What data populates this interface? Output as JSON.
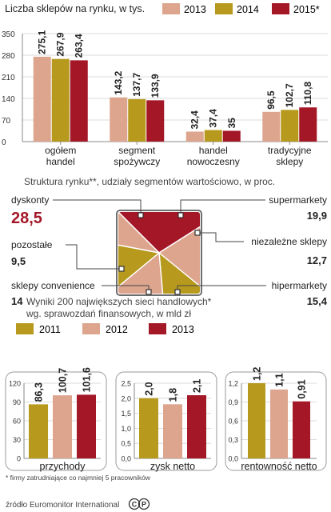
{
  "colors": {
    "c_pink": "#dda58e",
    "c_gold": "#b79a1d",
    "c_red": "#a31727",
    "frame": "#6f6f6f",
    "grid": "#cfcfcf",
    "text": "#222222"
  },
  "chart_data": [
    {
      "type": "bar",
      "title": "Liczba sklepów na rynku, w tys.",
      "categories": [
        "ogółem handel",
        "segment spożywczy",
        "handel nowoczesny",
        "tradycyjne sklepy"
      ],
      "category_lines": [
        [
          "ogółem",
          "handel"
        ],
        [
          "segment",
          "spożywczy"
        ],
        [
          "handel",
          "nowoczesny"
        ],
        [
          "tradycyjne",
          "sklepy"
        ]
      ],
      "series": [
        {
          "name": "2013",
          "color": "#dda58e",
          "values": [
            275.1,
            143.2,
            32.4,
            96.5
          ],
          "labels": [
            "275,1",
            "143,2",
            "32,4",
            "96,5"
          ]
        },
        {
          "name": "2014",
          "color": "#b79a1d",
          "values": [
            267.9,
            137.7,
            37.4,
            102.7
          ],
          "labels": [
            "267,9",
            "137,7",
            "37,4",
            "102,7"
          ]
        },
        {
          "name": "2015*",
          "color": "#a31727",
          "values": [
            263.4,
            133.9,
            35,
            110.8
          ],
          "labels": [
            "263,4",
            "133,9",
            "35",
            "110,8"
          ]
        }
      ],
      "ylim": [
        0,
        350
      ],
      "yticks": [
        0,
        70,
        140,
        210,
        280,
        350
      ],
      "legend": "top"
    },
    {
      "type": "pie",
      "title": "Struktura rynku**, udziały segmentów wartościowo, w proc.",
      "slices": [
        {
          "name": "dyskonty",
          "value": 28.5,
          "label": "28,5",
          "color": "#a31727"
        },
        {
          "name": "supermarkety",
          "value": 19.9,
          "label": "19,9",
          "color": "#dda58e"
        },
        {
          "name": "niezależne sklepy",
          "value": 12.7,
          "label": "12,7",
          "color": "#b79a1d"
        },
        {
          "name": "hipermarkety",
          "value": 15.4,
          "label": "15,4",
          "color": "#dda58e"
        },
        {
          "name": "sklepy convenience",
          "value": 14,
          "label": "14",
          "color": "#b79a1d"
        },
        {
          "name": "pozostałe",
          "value": 9.5,
          "label": "9,5",
          "color": "#dda58e"
        }
      ]
    },
    {
      "type": "bar",
      "title": "Wyniki 200 największych sieci handlowych* wg. sprawozdań finansowych, w mld zł",
      "title_lines": [
        "Wyniki 200 największych sieci handlowych*",
        "wg. sprawozdań finansowych, w mld zł"
      ],
      "legend": [
        "2011",
        "2012",
        "2013"
      ],
      "panels": [
        {
          "name": "przychody",
          "values": [
            86.3,
            100.7,
            101.6
          ],
          "labels": [
            "86,3",
            "100,7",
            "101,6"
          ],
          "ylim": [
            0,
            120
          ],
          "yticks": [
            "0",
            "30",
            "60",
            "90",
            "120"
          ]
        },
        {
          "name": "zysk netto",
          "values": [
            2.0,
            1.8,
            2.1
          ],
          "labels": [
            "2,0",
            "1,8",
            "2,1"
          ],
          "ylim": [
            0,
            2.5
          ],
          "yticks": [
            "0,0",
            "0,5",
            "1,0",
            "1,5",
            "2,0",
            "2,5"
          ]
        },
        {
          "name": "rentowność netto",
          "values": [
            1.2,
            1.1,
            0.91
          ],
          "labels": [
            "1,2",
            "1,1",
            "0,91"
          ],
          "ylim": [
            0,
            1.2
          ],
          "yticks": [
            "0,0",
            "0,3",
            "0,6",
            "0,9",
            "1,2"
          ]
        }
      ]
    }
  ],
  "footnote": "* firmy zatrudniające co najmniej 5 pracowników",
  "source": "źródło Euromonitor International",
  "logo_text": "CP"
}
